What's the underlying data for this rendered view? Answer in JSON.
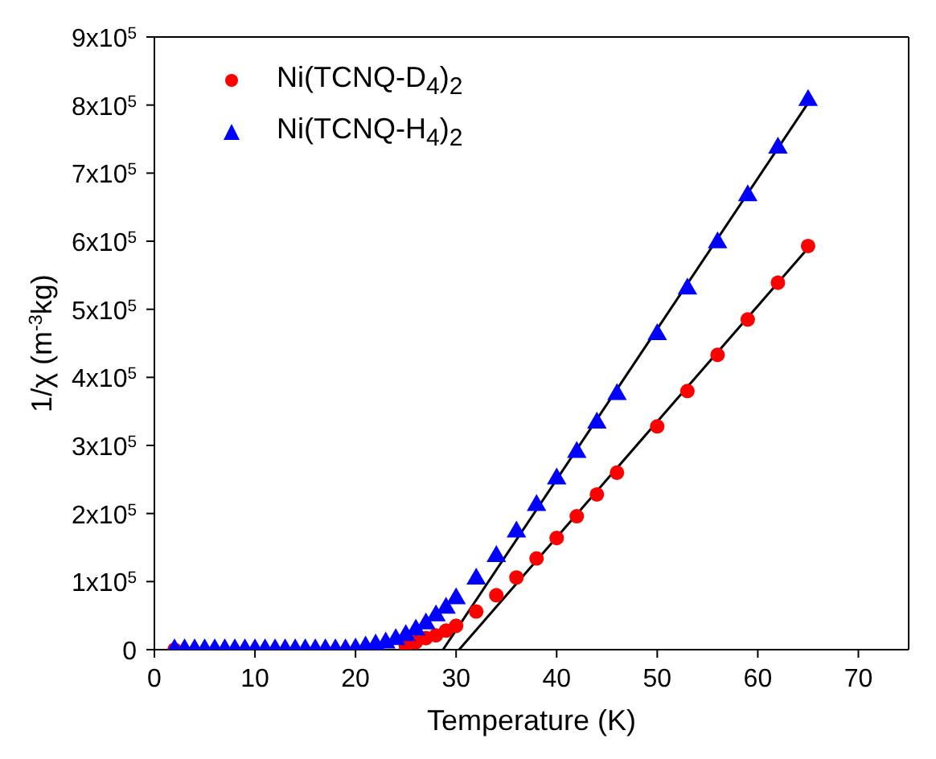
{
  "chart_data": {
    "type": "scatter",
    "xlabel": "Temperature (K)",
    "ylabel": "1/χ (m$^{-3}$kg)",
    "xlim": [
      0,
      75
    ],
    "xticks": [
      0,
      10,
      20,
      30,
      40,
      50,
      60,
      70
    ],
    "ylim": [
      0,
      900000
    ],
    "yticks": [
      0,
      {
        "value": 100000,
        "label": "1x10$^{5}$"
      },
      {
        "value": 200000,
        "label": "2x10$^{5}$"
      },
      {
        "value": 300000,
        "label": "3x10$^{5}$"
      },
      {
        "value": 400000,
        "label": "4x10$^{5}$"
      },
      {
        "value": 500000,
        "label": "5x10$^{5}$"
      },
      {
        "value": 600000,
        "label": "6x10$^{5}$"
      },
      {
        "value": 700000,
        "label": "7x10$^{5}$"
      },
      {
        "value": 800000,
        "label": "8x10$^{5}$"
      },
      {
        "value": 900000,
        "label": "9x10$^{5}$"
      }
    ],
    "legend": "top left",
    "series": [
      {
        "name": "Ni(TCNQ-D$_{4}$)$_{2}$",
        "color": "#ff0000",
        "marker": "circle",
        "x": [
          2,
          3,
          4,
          5,
          6,
          7,
          8,
          9,
          10,
          11,
          12,
          13,
          14,
          15,
          16,
          17,
          18,
          19,
          20,
          21,
          22,
          23,
          24,
          25,
          26,
          27,
          28,
          29,
          30,
          32,
          34,
          36,
          38,
          40,
          42,
          44,
          46,
          50,
          53,
          56,
          59,
          62,
          65
        ],
        "values": [
          0,
          null,
          null,
          null,
          null,
          null,
          null,
          null,
          null,
          null,
          null,
          null,
          null,
          null,
          null,
          null,
          null,
          null,
          null,
          null,
          null,
          null,
          null,
          6000,
          11000,
          17000,
          21000,
          28000,
          35000,
          56000,
          80000,
          106000,
          134000,
          164000,
          196000,
          228000,
          260000,
          328000,
          380000,
          433000,
          485000,
          539000,
          593000
        ]
      },
      {
        "name": "Ni(TCNQ-H$_{4}$)$_{2}$",
        "color": "#0000ff",
        "marker": "triangle",
        "x": [
          2,
          3,
          4,
          5,
          6,
          7,
          8,
          9,
          10,
          11,
          12,
          13,
          14,
          15,
          16,
          17,
          18,
          19,
          20,
          21,
          22,
          23,
          24,
          25,
          26,
          27,
          28,
          29,
          30,
          32,
          34,
          36,
          38,
          40,
          42,
          44,
          46,
          50,
          53,
          56,
          59,
          62,
          65
        ],
        "values": [
          0,
          0,
          0,
          0,
          0,
          0,
          0,
          0,
          0,
          0,
          0,
          0,
          0,
          0,
          0,
          0,
          0,
          0,
          1000,
          4000,
          7000,
          10000,
          15000,
          21000,
          29000,
          38000,
          50000,
          61000,
          75000,
          104000,
          137000,
          173000,
          212000,
          251000,
          290000,
          333000,
          375000,
          463000,
          530000,
          598000,
          667000,
          737000,
          807000
        ]
      },
      {
        "type": "line",
        "color": "#000000",
        "x": [
          30.3,
          65
        ],
        "values": [
          0,
          590000
        ]
      },
      {
        "type": "line",
        "color": "#000000",
        "x": [
          28.7,
          65
        ],
        "values": [
          0,
          803000
        ]
      }
    ]
  }
}
